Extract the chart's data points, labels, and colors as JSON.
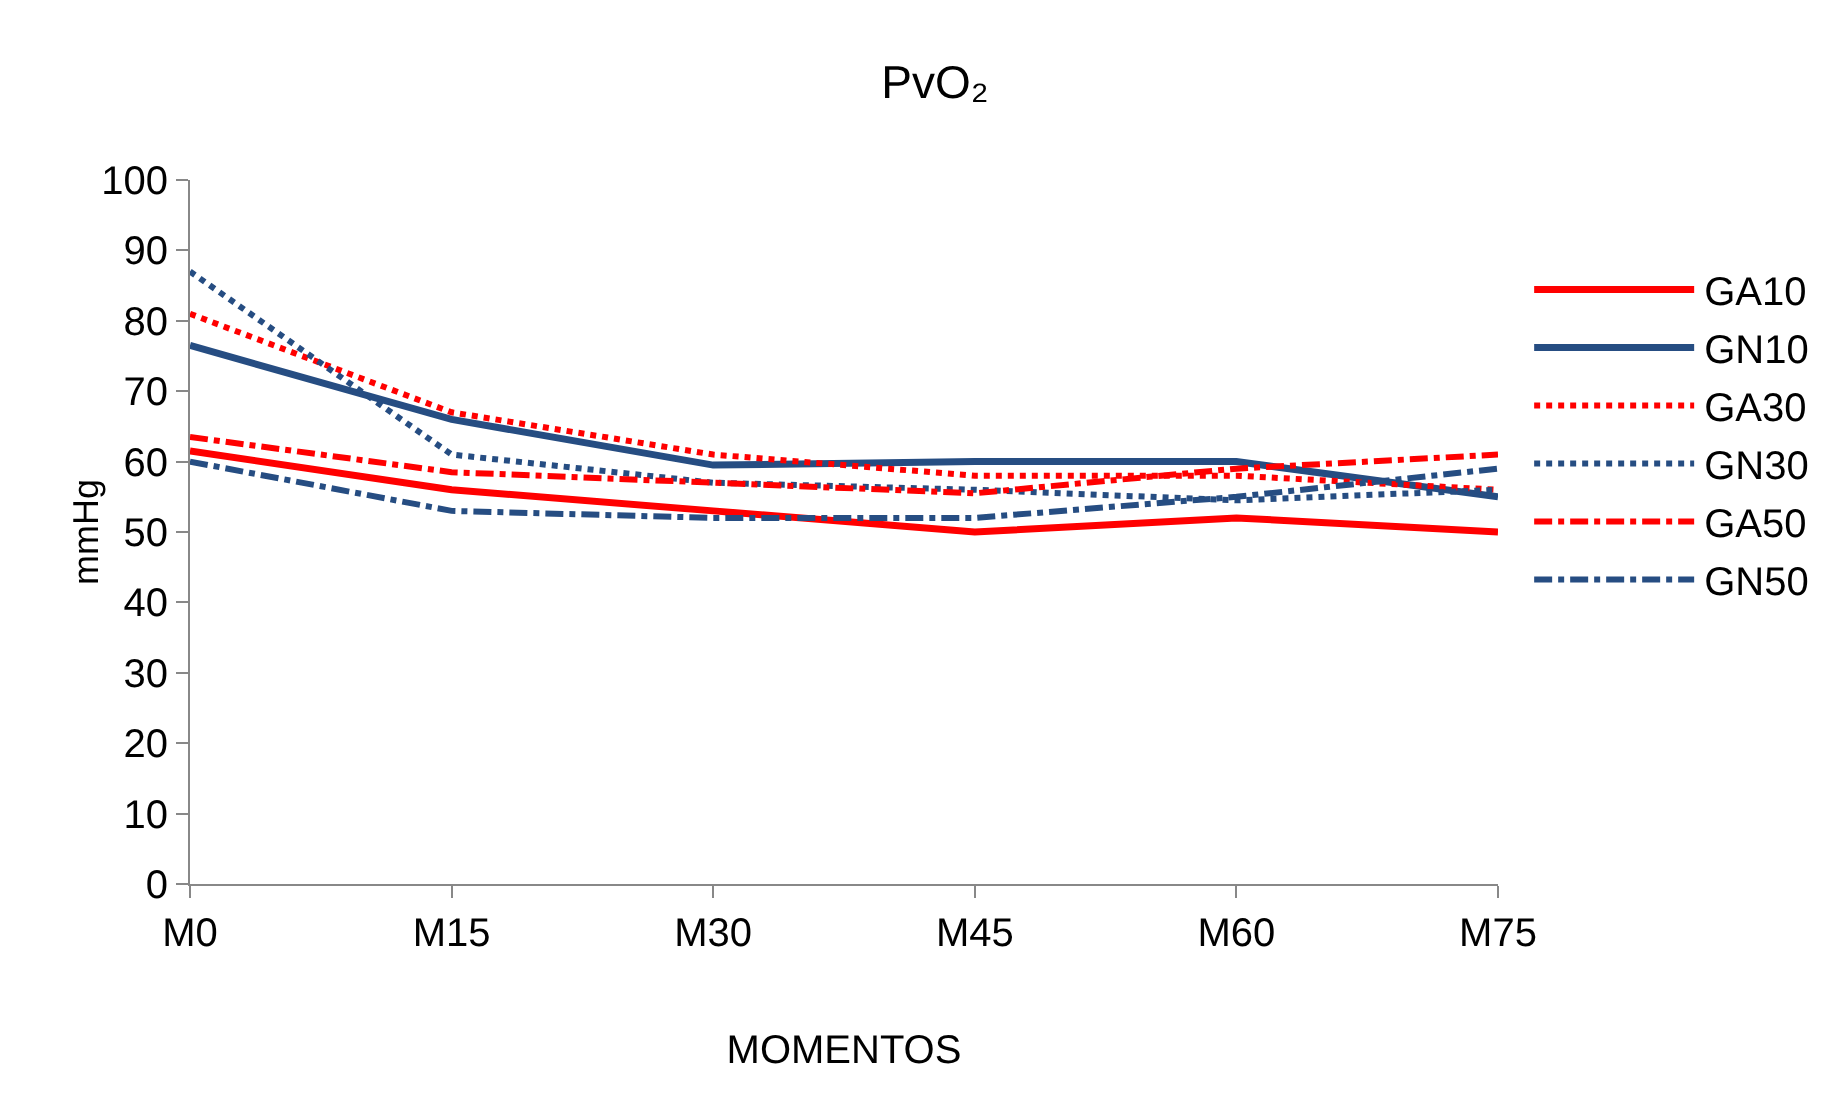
{
  "chart_data": {
    "type": "line",
    "title": "PvO₂",
    "xlabel": "MOMENTOS",
    "ylabel": "mmHg",
    "categories": [
      "M0",
      "M15",
      "M30",
      "M45",
      "M60",
      "M75"
    ],
    "ylim": [
      0,
      100
    ],
    "yticks": [
      0,
      10,
      20,
      30,
      40,
      50,
      60,
      70,
      80,
      90,
      100
    ],
    "grid": false,
    "legend": "right",
    "marker": "none",
    "series": [
      {
        "name": "GA10",
        "color": "#ff0000",
        "line_style": "solid",
        "values": [
          61.5,
          56,
          53,
          50,
          52,
          50
        ]
      },
      {
        "name": "GN10",
        "color": "#264d82",
        "line_style": "solid",
        "values": [
          76.5,
          66,
          59.5,
          60,
          60,
          55
        ]
      },
      {
        "name": "GA30",
        "color": "#ff0000",
        "line_style": "dotted",
        "values": [
          81,
          67,
          61,
          58,
          58,
          56
        ]
      },
      {
        "name": "GN30",
        "color": "#264d82",
        "line_style": "dotted",
        "values": [
          87,
          61,
          57,
          56,
          54.5,
          56
        ]
      },
      {
        "name": "GA50",
        "color": "#ff0000",
        "line_style": "dashed",
        "values": [
          63.5,
          58.5,
          57,
          55.5,
          59,
          61
        ]
      },
      {
        "name": "GN50",
        "color": "#264d82",
        "line_style": "dashed",
        "values": [
          60,
          53,
          52,
          52,
          55,
          59
        ]
      }
    ]
  }
}
